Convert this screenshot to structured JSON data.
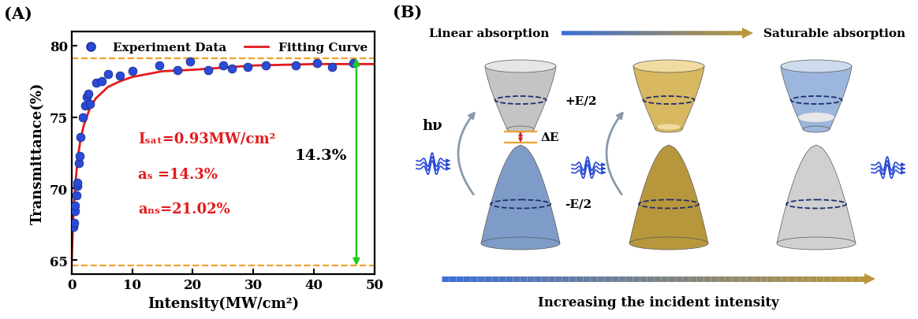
{
  "chart_data": {
    "type": "scatter",
    "panel_label": "(A)",
    "x_label": "Intensity(MW/cm²)",
    "y_label": "Transmittance(%)",
    "xlim": [
      0,
      50
    ],
    "xticks": [
      0,
      10,
      20,
      30,
      40,
      50
    ],
    "ylim": [
      64,
      81
    ],
    "yticks": [
      65,
      70,
      75,
      80
    ],
    "legend": "upper center",
    "series": [
      {
        "name": "Experiment Data",
        "type": "scatter",
        "color": "#2a4bd7",
        "marker": "o",
        "x": [
          0.3,
          0.4,
          0.5,
          0.6,
          0.8,
          0.9,
          1.0,
          1.2,
          1.3,
          1.5,
          1.8,
          2.2,
          2.5,
          2.8,
          3.0,
          4.0,
          5.0,
          6.0,
          8.0,
          10.0,
          14.5,
          17.5,
          19.5,
          22.5,
          25.0,
          26.5,
          29.0,
          32.0,
          37.0,
          40.5,
          43.0,
          46.5
        ],
        "values": [
          67.3,
          67.6,
          68.4,
          68.8,
          69.5,
          70.2,
          70.4,
          71.8,
          72.3,
          73.6,
          75.0,
          75.8,
          76.4,
          76.6,
          75.9,
          77.4,
          77.5,
          78.0,
          77.9,
          78.2,
          78.6,
          78.3,
          78.9,
          78.3,
          78.6,
          78.4,
          78.5,
          78.6,
          78.6,
          78.8,
          78.5,
          78.8
        ]
      },
      {
        "name": "Fitting Curve",
        "type": "line",
        "color": "#e31a1c",
        "line_style": "solid",
        "x": [
          0,
          0.25,
          0.5,
          1,
          1.5,
          2,
          3,
          4,
          6,
          8,
          10,
          15,
          20,
          30,
          40,
          50
        ],
        "values": [
          64.7,
          67.7,
          69.7,
          72.1,
          73.5,
          74.4,
          75.6,
          76.3,
          77.1,
          77.5,
          77.8,
          78.2,
          78.3,
          78.6,
          78.7,
          78.7
        ]
      }
    ],
    "reference_lines": {
      "values": [
        79.1,
        64.6
      ],
      "color": "#f0a030",
      "line_style": "dashed"
    },
    "annotations": [
      {
        "text": "Iₛₐₜ=0.93MW/cm²",
        "color": "#e31a1c"
      },
      {
        "text": "aₛ =14.3%",
        "color": "#e31a1c"
      },
      {
        "text": "aₙₛ=21.02%",
        "color": "#e31a1c"
      }
    ],
    "difference_arrow": {
      "x": 47,
      "from": 64.6,
      "to": 79.1,
      "label": "14.3%",
      "color": "#22cc22"
    }
  },
  "diagram": {
    "panel_label": "(B)",
    "top_left": "Linear absorption",
    "top_right": "Saturable absorption",
    "photon": "hν",
    "upper_band": "+E/2",
    "lower_band": "-E/2",
    "gap": "ΔE",
    "bottom": "Increasing the incident intensity"
  }
}
